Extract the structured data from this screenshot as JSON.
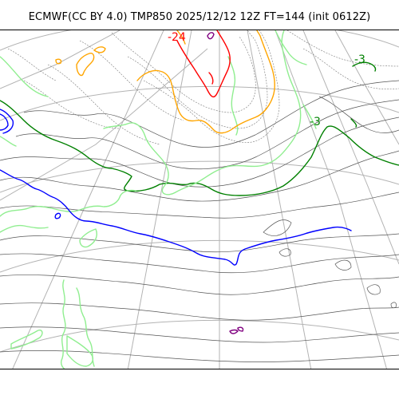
{
  "title": "ECMWF(CC BY 4.0) TMP850 2025/12/12 12Z FT=144 (init 0612Z)",
  "colors": {
    "minus_30": "#800080",
    "minus_24": "#ff0000",
    "minus_18": "#ffa500",
    "minus_12": "#90ee90",
    "minus_6": "#008000",
    "zero": "#0000ff",
    "plus_6": "#90ee90",
    "graticule": "#b3b3b3",
    "minor_contour": "#555555"
  },
  "contour_labels": {
    "top_red": "-24",
    "upper_right_green": "-3",
    "right_green": "-3"
  }
}
